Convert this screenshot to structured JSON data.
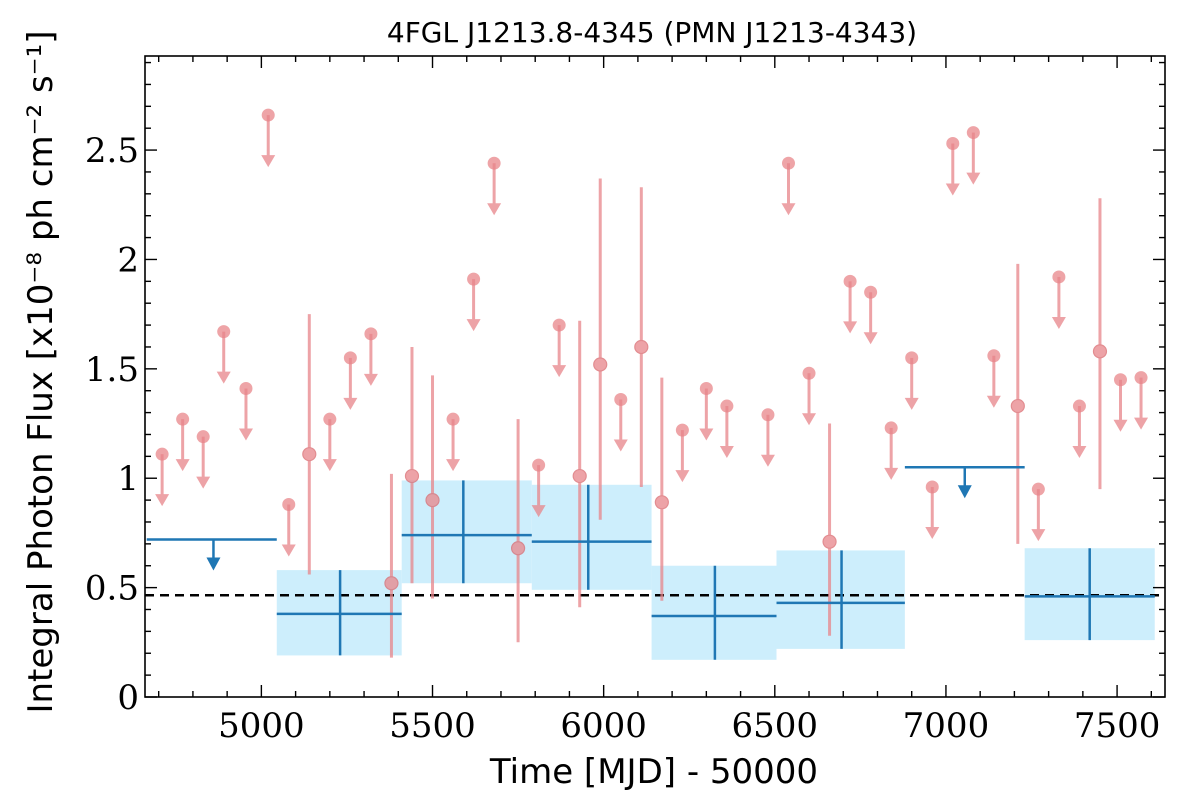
{
  "chart_data": {
    "type": "scatter",
    "title": "4FGL J1213.8-4345 (PMN J1213-4343)",
    "xlabel": "Time [MJD] - 50000",
    "ylabel": "Integral Photon Flux [x10⁻⁸ ph cm⁻² s⁻¹]",
    "xlim": [
      4660,
      7640
    ],
    "ylim": [
      0,
      2.93
    ],
    "xticks": [
      5000,
      5500,
      6000,
      6500,
      7000,
      7500
    ],
    "yticks": [
      0,
      0.5,
      1,
      1.5,
      2,
      2.5
    ],
    "ytick_labels": [
      "0",
      "0.5",
      "1",
      "1.5",
      "2",
      "2.5"
    ],
    "reference_line": {
      "y": 0.465,
      "style": "dashed",
      "color": "#000000"
    },
    "colors": {
      "short_bins": "#e8858a",
      "long_bins": "#1f77b4",
      "long_band": "#cdeefc"
    },
    "series": [
      {
        "kind": "short_upper_limits",
        "points": [
          {
            "x": 4710,
            "y": 1.11
          },
          {
            "x": 4770,
            "y": 1.27
          },
          {
            "x": 4830,
            "y": 1.19
          },
          {
            "x": 4890,
            "y": 1.67
          },
          {
            "x": 4955,
            "y": 1.41
          },
          {
            "x": 5020,
            "y": 2.66
          },
          {
            "x": 5080,
            "y": 0.88
          },
          {
            "x": 5200,
            "y": 1.27
          },
          {
            "x": 5260,
            "y": 1.55
          },
          {
            "x": 5320,
            "y": 1.66
          },
          {
            "x": 5560,
            "y": 1.27
          },
          {
            "x": 5620,
            "y": 1.91
          },
          {
            "x": 5680,
            "y": 2.44
          },
          {
            "x": 5810,
            "y": 1.06
          },
          {
            "x": 5870,
            "y": 1.7
          },
          {
            "x": 6050,
            "y": 1.36
          },
          {
            "x": 6230,
            "y": 1.22
          },
          {
            "x": 6300,
            "y": 1.41
          },
          {
            "x": 6360,
            "y": 1.33
          },
          {
            "x": 6480,
            "y": 1.29
          },
          {
            "x": 6540,
            "y": 2.44
          },
          {
            "x": 6600,
            "y": 1.48
          },
          {
            "x": 6720,
            "y": 1.9
          },
          {
            "x": 6780,
            "y": 1.85
          },
          {
            "x": 6840,
            "y": 1.23
          },
          {
            "x": 6900,
            "y": 1.55
          },
          {
            "x": 6960,
            "y": 0.96
          },
          {
            "x": 7020,
            "y": 2.53
          },
          {
            "x": 7080,
            "y": 2.58
          },
          {
            "x": 7140,
            "y": 1.56
          },
          {
            "x": 7270,
            "y": 0.95
          },
          {
            "x": 7330,
            "y": 1.92
          },
          {
            "x": 7390,
            "y": 1.33
          },
          {
            "x": 7510,
            "y": 1.45
          },
          {
            "x": 7570,
            "y": 1.46
          }
        ]
      },
      {
        "kind": "short_detections",
        "points": [
          {
            "x": 5140,
            "y": 1.11,
            "ylo": 0.56,
            "yhi": 1.75
          },
          {
            "x": 5380,
            "y": 0.52,
            "ylo": 0.18,
            "yhi": 1.02
          },
          {
            "x": 5440,
            "y": 1.01,
            "ylo": 0.52,
            "yhi": 1.6
          },
          {
            "x": 5500,
            "y": 0.9,
            "ylo": 0.45,
            "yhi": 1.47
          },
          {
            "x": 5750,
            "y": 0.68,
            "ylo": 0.25,
            "yhi": 1.27
          },
          {
            "x": 5930,
            "y": 1.01,
            "ylo": 0.41,
            "yhi": 1.72
          },
          {
            "x": 5990,
            "y": 1.52,
            "ylo": 0.81,
            "yhi": 2.37
          },
          {
            "x": 6110,
            "y": 1.6,
            "ylo": 0.96,
            "yhi": 2.33
          },
          {
            "x": 6170,
            "y": 0.89,
            "ylo": 0.44,
            "yhi": 1.46
          },
          {
            "x": 6660,
            "y": 0.71,
            "ylo": 0.28,
            "yhi": 1.25
          },
          {
            "x": 7210,
            "y": 1.33,
            "ylo": 0.7,
            "yhi": 1.98
          },
          {
            "x": 7450,
            "y": 1.58,
            "ylo": 0.95,
            "yhi": 2.28
          }
        ]
      },
      {
        "kind": "long_upper_limits",
        "points": [
          {
            "x0": 4665,
            "x1": 5045,
            "xc": 4860,
            "y": 0.72
          },
          {
            "x0": 6880,
            "x1": 7230,
            "xc": 7055,
            "y": 1.05
          }
        ]
      },
      {
        "kind": "long_detections",
        "points": [
          {
            "x0": 5045,
            "x1": 5410,
            "xc": 5230,
            "y": 0.38,
            "ylo": 0.19,
            "yhi": 0.58
          },
          {
            "x0": 5410,
            "x1": 5790,
            "xc": 5590,
            "y": 0.74,
            "ylo": 0.52,
            "yhi": 0.99
          },
          {
            "x0": 5790,
            "x1": 6140,
            "xc": 5955,
            "y": 0.71,
            "ylo": 0.49,
            "yhi": 0.97
          },
          {
            "x0": 6140,
            "x1": 6505,
            "xc": 6325,
            "y": 0.37,
            "ylo": 0.17,
            "yhi": 0.6
          },
          {
            "x0": 6505,
            "x1": 6880,
            "xc": 6695,
            "y": 0.43,
            "ylo": 0.22,
            "yhi": 0.67
          },
          {
            "x0": 7230,
            "x1": 7610,
            "xc": 7420,
            "y": 0.46,
            "ylo": 0.26,
            "yhi": 0.68
          }
        ]
      }
    ]
  }
}
